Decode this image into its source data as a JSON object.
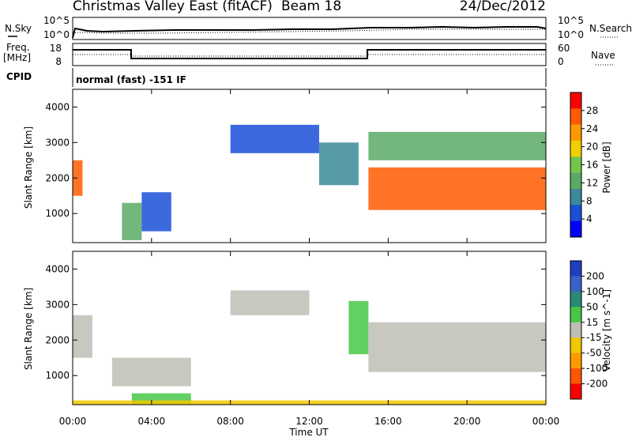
{
  "header": {
    "station": "Christmas Valley East (fitACF)",
    "beam": "Beam 18",
    "date": "24/Dec/2012"
  },
  "summary_panels": {
    "nsky": {
      "label": "N.Sky",
      "ticks": [
        "10^5",
        "10^0"
      ]
    },
    "nsearch": {
      "label": "N.Search",
      "ticks": [
        "10^5",
        "10^0"
      ]
    },
    "freq": {
      "label_line1": "Freq.",
      "label_line2": "[MHz]",
      "ticks": [
        "18",
        "8"
      ]
    },
    "nave": {
      "label": "Nave",
      "ticks": [
        "60",
        "0"
      ]
    },
    "cpid": {
      "label": "CPID",
      "text": "normal (fast) -151 IF"
    }
  },
  "colors": {
    "power_scale": [
      "#0000ff",
      "#1a4fd8",
      "#3a8a9a",
      "#5aaa66",
      "#74c64a",
      "#f2d000",
      "#ff9900",
      "#ff5a00",
      "#ff0000"
    ],
    "velocity_scale": [
      "#1f3fbf",
      "#3a62c8",
      "#2a8a72",
      "#46c846",
      "#bebeb6",
      "#f2c800",
      "#ff9a00",
      "#ff5400",
      "#ff0000"
    ]
  },
  "chart_data": [
    {
      "type": "heatmap",
      "panel": "power",
      "title": "",
      "xlabel": "Time UT",
      "ylabel": "Slant Range [km]",
      "xlim": [
        0,
        24
      ],
      "ylim": [
        180,
        4500
      ],
      "x_ticks": [
        "00:00",
        "04:00",
        "08:00",
        "12:00",
        "16:00",
        "20:00",
        "00:00"
      ],
      "y_ticks": [
        "1000",
        "2000",
        "3000",
        "4000"
      ],
      "colorbar": {
        "label": "Power [dB]",
        "ticks": [
          "28",
          "24",
          "20",
          "16",
          "12",
          "8",
          "4"
        ],
        "range": [
          0,
          30
        ]
      },
      "regions": [
        {
          "x": [
            0.0,
            0.5
          ],
          "y": [
            1500,
            2500
          ],
          "value": 24
        },
        {
          "x": [
            2.5,
            3.5
          ],
          "y": [
            250,
            1300
          ],
          "value": 12
        },
        {
          "x": [
            3.5,
            5.0
          ],
          "y": [
            500,
            1600
          ],
          "value": 6
        },
        {
          "x": [
            8.0,
            12.5
          ],
          "y": [
            2700,
            3500
          ],
          "value": 5
        },
        {
          "x": [
            12.5,
            14.5
          ],
          "y": [
            1800,
            3000
          ],
          "value": 9
        },
        {
          "x": [
            15.0,
            24.0
          ],
          "y": [
            2500,
            3300
          ],
          "value": 12
        },
        {
          "x": [
            15.0,
            24.0
          ],
          "y": [
            1100,
            2300
          ],
          "value": 24
        }
      ]
    },
    {
      "type": "heatmap",
      "panel": "velocity",
      "title": "",
      "xlabel": "Time UT",
      "ylabel": "Slant Range [km]",
      "xlim": [
        0,
        24
      ],
      "ylim": [
        180,
        4500
      ],
      "x_ticks": [
        "00:00",
        "04:00",
        "08:00",
        "12:00",
        "16:00",
        "20:00",
        "00:00"
      ],
      "y_ticks": [
        "1000",
        "2000",
        "3000",
        "4000"
      ],
      "colorbar": {
        "label": "Velocity [m s^-1]",
        "ticks": [
          "200",
          "100",
          "50",
          "15",
          "-15",
          "-50",
          "-100",
          "-200"
        ],
        "range": [
          -250,
          250
        ]
      },
      "regions": [
        {
          "x": [
            0.0,
            1.0
          ],
          "y": [
            1500,
            2700
          ],
          "value": 0
        },
        {
          "x": [
            2.0,
            6.0
          ],
          "y": [
            700,
            1500
          ],
          "value": 0
        },
        {
          "x": [
            3.0,
            6.0
          ],
          "y": [
            200,
            500
          ],
          "value": 30
        },
        {
          "x": [
            8.0,
            12.0
          ],
          "y": [
            2700,
            3400
          ],
          "value": 0
        },
        {
          "x": [
            14.0,
            15.0
          ],
          "y": [
            1600,
            3100
          ],
          "value": 30
        },
        {
          "x": [
            15.0,
            24.0
          ],
          "y": [
            1100,
            2500
          ],
          "value": 0
        },
        {
          "x": [
            0.0,
            24.0
          ],
          "y": [
            180,
            300
          ],
          "value": -60
        }
      ]
    }
  ]
}
